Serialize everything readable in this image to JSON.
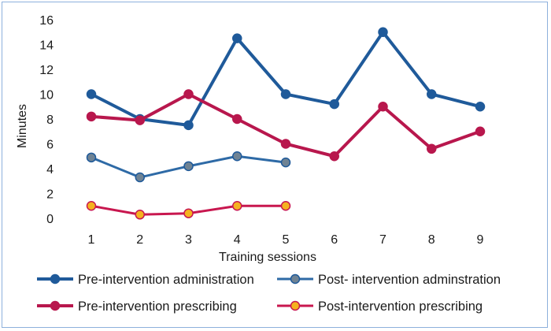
{
  "chart_data": {
    "type": "line",
    "x": [
      1,
      2,
      3,
      4,
      5,
      6,
      7,
      8,
      9
    ],
    "xlabel": "Training sessions",
    "ylabel": "Minutes",
    "ylim": [
      0,
      16
    ],
    "yticks": [
      0,
      2,
      4,
      6,
      8,
      10,
      12,
      14,
      16
    ],
    "grid": false,
    "legend_position": "bottom",
    "series": [
      {
        "name": "Pre-intervention administration",
        "values": [
          10,
          8,
          7.5,
          14.5,
          10,
          9.2,
          15,
          10,
          9
        ],
        "line_color": "#1f5a9a",
        "marker_color": "#1f5a9a",
        "marker_edge": "#1f5a9a",
        "line_width": 4
      },
      {
        "name": "Post- intervention adminstration",
        "values": [
          4.9,
          3.3,
          4.2,
          5,
          4.5,
          null,
          null,
          null,
          null
        ],
        "line_color": "#2e6aa6",
        "marker_color": "#6f8394",
        "marker_edge": "#1f5a9a",
        "line_width": 3
      },
      {
        "name": "Pre-intervention prescribing",
        "values": [
          8.2,
          7.9,
          10,
          8,
          6,
          5,
          9,
          5.6,
          7
        ],
        "line_color": "#b8174d",
        "marker_color": "#b8174d",
        "marker_edge": "#b8174d",
        "line_width": 4
      },
      {
        "name": "Post-intervention prescribing",
        "values": [
          1,
          0.3,
          0.4,
          1,
          1,
          null,
          null,
          null,
          null
        ],
        "line_color": "#c8174f",
        "marker_color": "#f5b21f",
        "marker_edge": "#c8174f",
        "line_width": 3
      }
    ]
  }
}
